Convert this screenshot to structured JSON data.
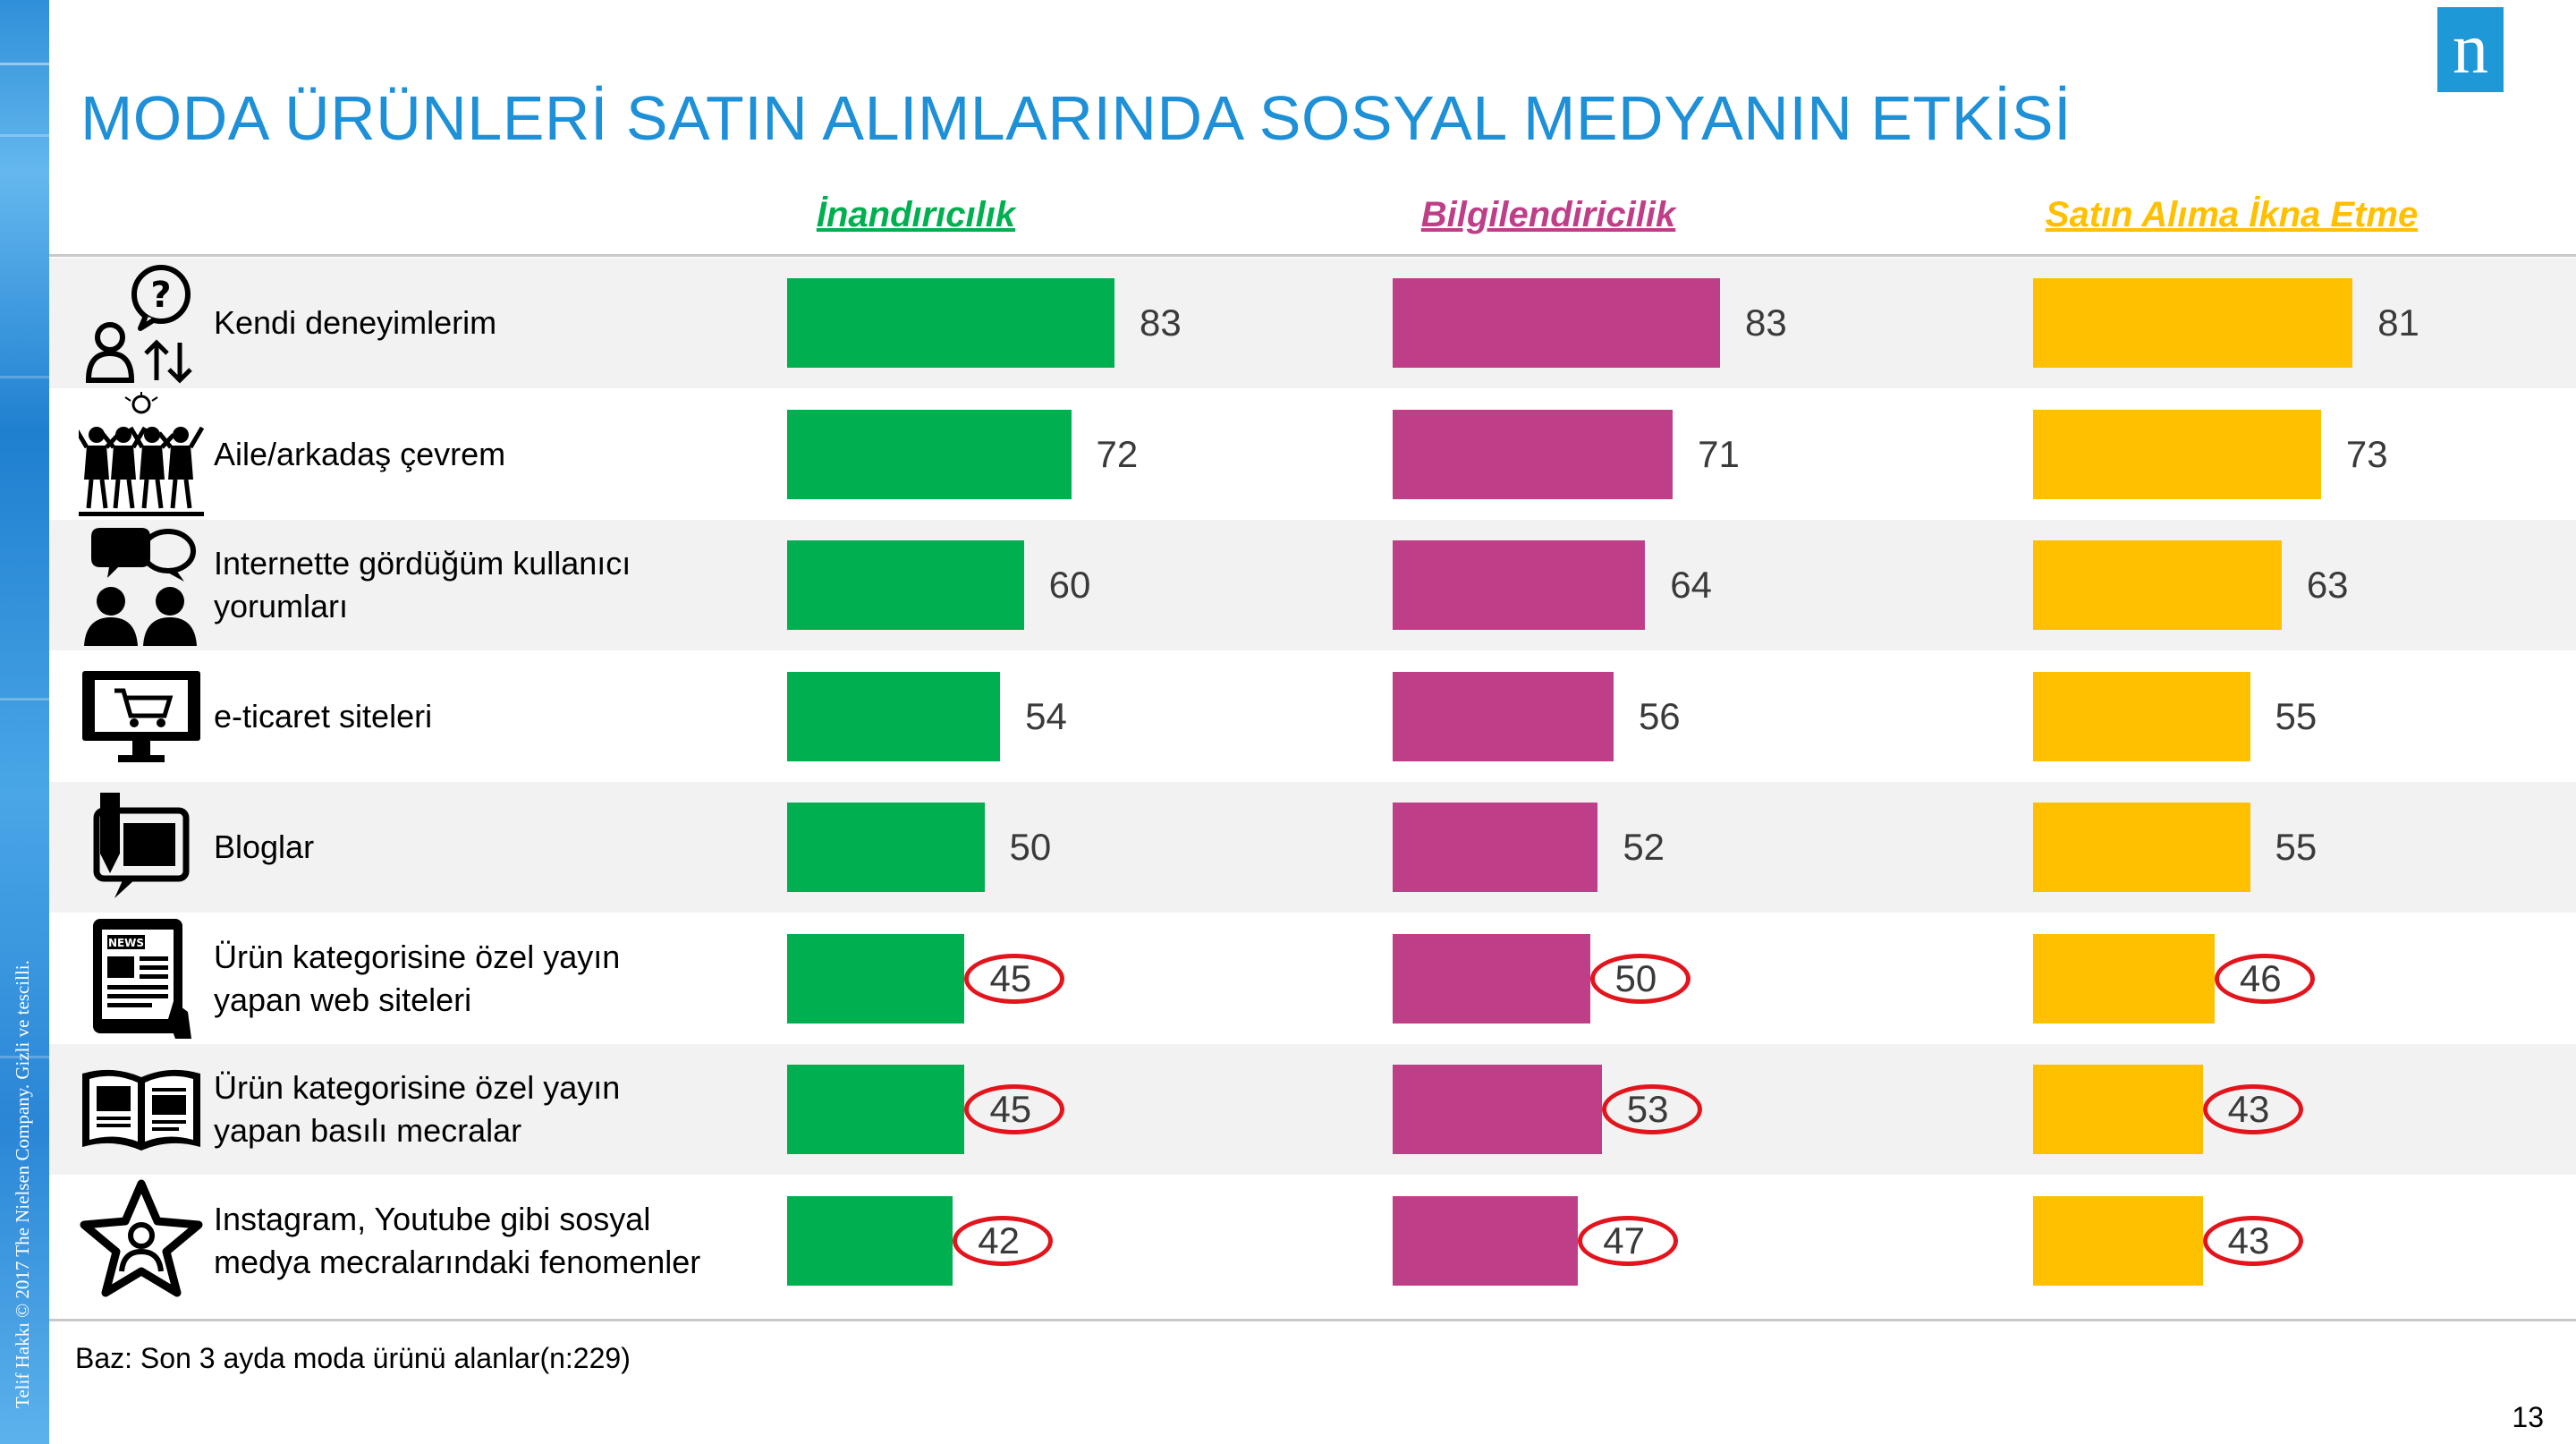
{
  "title": "MODA ÜRÜNLERİ SATIN ALIMLARINDA SOSYAL MEDYANIN ETKİSİ",
  "logo_letter": "n",
  "side_text": "Telif Hakkı © 2017 The Nielsen Company. Gizli ve tescilli.",
  "base_note": "Baz: Son 3 ayda moda ürünü alanlar(n:229)",
  "page_number": "13",
  "colors": {
    "green": "#00b050",
    "magenta": "#be3f87",
    "yellow": "#ffc000",
    "title_blue": "#1e90d8",
    "highlight_ring": "#e3141b"
  },
  "chart_data": {
    "type": "bar",
    "orientation": "horizontal",
    "categories": [
      "Kendi deneyimlerim",
      "Aile/arkadaş çevrem",
      "Internette gördüğüm kullanıcı yorumları",
      "e-ticaret siteleri",
      "Bloglar",
      "Ürün kategorisine özel yayın yapan web siteleri",
      "Ürün kategorisine özel yayın yapan basılı mecralar",
      "Instagram, Youtube gibi sosyal medya mecralarındaki fenomenler"
    ],
    "category_icons": [
      "question-person-icon",
      "friends-group-icon",
      "chat-people-icon",
      "shopping-cart-monitor-icon",
      "blog-pen-icon",
      "news-tablet-icon",
      "open-magazine-icon",
      "star-person-icon"
    ],
    "series": [
      {
        "name": "İnandırıcılık",
        "color": "#00b050",
        "values": [
          83,
          72,
          60,
          54,
          50,
          45,
          45,
          42
        ],
        "highlighted": [
          false,
          false,
          false,
          false,
          false,
          true,
          true,
          true
        ]
      },
      {
        "name": "Bilgilendiricilik",
        "color": "#be3f87",
        "values": [
          83,
          71,
          64,
          56,
          52,
          50,
          53,
          47
        ],
        "highlighted": [
          false,
          false,
          false,
          false,
          false,
          true,
          true,
          true
        ]
      },
      {
        "name": "Satın Alıma İkna Etme",
        "color": "#ffc000",
        "values": [
          81,
          73,
          63,
          55,
          55,
          46,
          43,
          43
        ],
        "highlighted": [
          false,
          false,
          false,
          false,
          false,
          true,
          true,
          true
        ]
      }
    ],
    "xlim": [
      0,
      100
    ],
    "grid": false,
    "data_labels": true
  }
}
